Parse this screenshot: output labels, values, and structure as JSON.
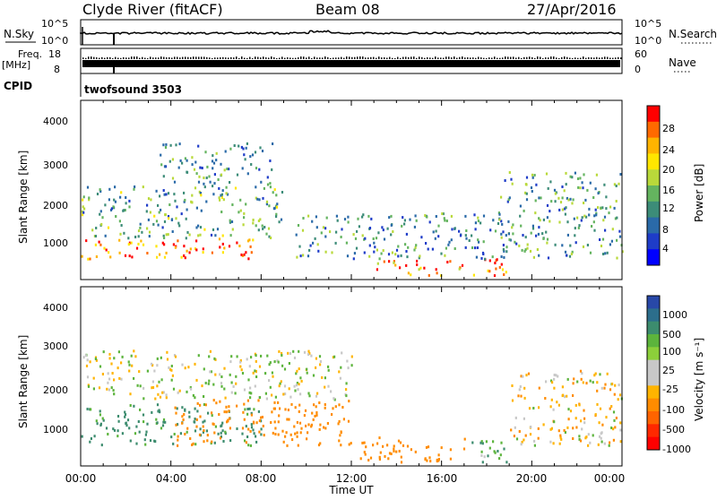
{
  "header": {
    "station": "Clyde River (fitACF)",
    "beam": "Beam 08",
    "date": "27/Apr/2016"
  },
  "panels": {
    "nsky": {
      "left_label": "N.Sky",
      "right_label": "N.Search",
      "left_ticks": [
        "10^5",
        "10^0"
      ],
      "right_ticks": [
        "10^5",
        "10^0"
      ]
    },
    "freq": {
      "left_label_1": "Freq.",
      "left_label_2": "[MHz]",
      "left_ticks": [
        "18",
        "8"
      ],
      "right_label": "Nave",
      "right_ticks": [
        "60",
        "0"
      ]
    },
    "cpid": {
      "label": "CPID",
      "value": "twofsound 3503"
    }
  },
  "colorbars": {
    "power": {
      "label": "Power [dB]",
      "ticks": [
        "28",
        "24",
        "20",
        "16",
        "12",
        "8",
        "4"
      ],
      "colors": [
        "#ff0000",
        "#ff6a00",
        "#ffb400",
        "#ffe600",
        "#b9d93a",
        "#64b45f",
        "#3c8c78",
        "#2a6aa8",
        "#1e3cc8",
        "#0000ff"
      ]
    },
    "velocity": {
      "label": "Velocity [m s⁻¹]",
      "ticks": [
        "1000",
        "500",
        "100",
        "25",
        "-25",
        "-100",
        "-500",
        "-1000"
      ],
      "colors": [
        "#2848a8",
        "#2c6e8c",
        "#3c8c6e",
        "#5cb43c",
        "#8ccf3a",
        "#c8c8c8",
        "#c8c8c8",
        "#ffb400",
        "#ff8c00",
        "#ff6400",
        "#ff2800",
        "#ff0000"
      ]
    }
  },
  "axes": {
    "ylabel": "Slant Range [km]",
    "yticks": [
      "4000",
      "3000",
      "2000",
      "1000"
    ],
    "xticks": [
      "00:00",
      "04:00",
      "08:00",
      "12:00",
      "16:00",
      "20:00",
      "00:00"
    ],
    "xlabel": "Time UT"
  },
  "chart_data": [
    {
      "type": "heatmap",
      "title": "Power",
      "xlabel": "",
      "ylabel": "Slant Range [km]",
      "x_range_hours": [
        0,
        24
      ],
      "ylim": [
        180,
        4500
      ],
      "zlim": [
        0,
        30
      ],
      "colorbar_label": "Power [dB]",
      "regions": [
        {
          "t0": 0.0,
          "t1": 8.0,
          "r0": 700,
          "r1": 1200,
          "value": 25
        },
        {
          "t0": 0.0,
          "t1": 9.0,
          "r0": 1200,
          "r1": 2500,
          "value": 12
        },
        {
          "t0": 3.5,
          "t1": 8.5,
          "r0": 2500,
          "r1": 3500,
          "value": 10
        },
        {
          "t0": 13.0,
          "t1": 19.0,
          "r0": 300,
          "r1": 700,
          "value": 24
        },
        {
          "t0": 9.5,
          "t1": 19.0,
          "r0": 700,
          "r1": 1800,
          "value": 10
        },
        {
          "t0": 18.5,
          "t1": 24.0,
          "r0": 700,
          "r1": 2800,
          "value": 11
        }
      ]
    },
    {
      "type": "heatmap",
      "title": "Velocity",
      "xlabel": "Time UT",
      "ylabel": "Slant Range [km]",
      "x_range_hours": [
        0,
        24
      ],
      "ylim": [
        180,
        4500
      ],
      "colorbar_label": "Velocity [m s⁻¹]",
      "colorbar_ticks": [
        1000,
        500,
        100,
        25,
        -25,
        -100,
        -500,
        -1000
      ],
      "regions": [
        {
          "t0": 0.0,
          "t1": 8.0,
          "r0": 700,
          "r1": 1700,
          "value": 150
        },
        {
          "t0": 0.0,
          "t1": 12.0,
          "r0": 1800,
          "r1": 3000,
          "value": 0
        },
        {
          "t0": 4.0,
          "t1": 12.0,
          "r0": 700,
          "r1": 1800,
          "value": -300
        },
        {
          "t0": 12.0,
          "t1": 17.0,
          "r0": 300,
          "r1": 900,
          "value": -200
        },
        {
          "t0": 17.0,
          "t1": 19.0,
          "r0": 300,
          "r1": 900,
          "value": 80
        },
        {
          "t0": 19.0,
          "t1": 24.0,
          "r0": 700,
          "r1": 2500,
          "value": -50
        }
      ]
    }
  ]
}
